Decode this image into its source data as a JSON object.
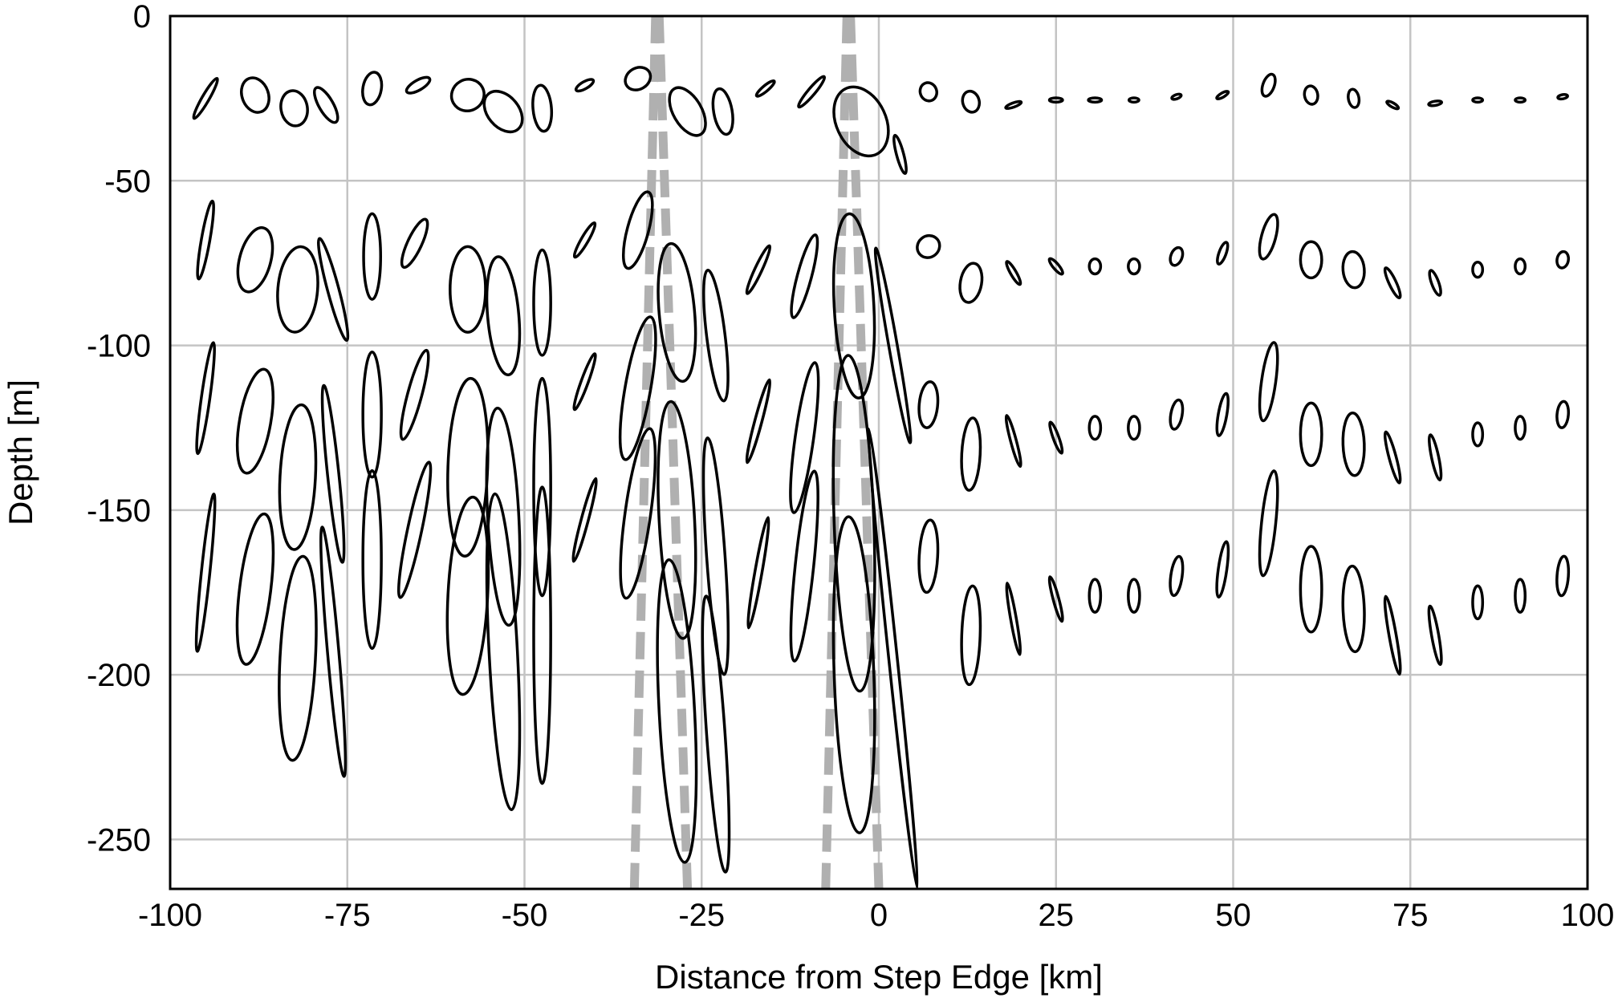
{
  "chart_data": {
    "type": "scatter",
    "mark": "ellipse",
    "title": "",
    "xlabel": "Distance from Step Edge [km]",
    "ylabel": "Depth [m]",
    "xlim": [
      -100,
      100
    ],
    "ylim": [
      -265,
      0
    ],
    "xticks": [
      -100,
      -75,
      -50,
      -25,
      0,
      25,
      50,
      75,
      100
    ],
    "yticks": [
      0,
      -50,
      -100,
      -150,
      -200,
      -250
    ],
    "xtick_labels": [
      "-100",
      "-75",
      "-50",
      "-25",
      "0",
      "25",
      "50",
      "75",
      "100"
    ],
    "ytick_labels": [
      "0",
      "-50",
      "-100",
      "-150",
      "-200",
      "-250"
    ],
    "grid": true,
    "reference_lines": {
      "style": "dashed",
      "color": "#b0b0b0",
      "lines": [
        {
          "x_top": -31.5,
          "x_bottom": -34.5
        },
        {
          "x_top": -31.0,
          "x_bottom": -27.0
        },
        {
          "x_top": -4.5,
          "x_bottom": -7.5
        },
        {
          "x_top": -4.0,
          "x_bottom": 0.0
        }
      ]
    },
    "depth_levels": [
      -25,
      -75,
      -125,
      -175
    ],
    "series": [
      {
        "ellipses": [
          {
            "x": -95,
            "y": -25,
            "ry": 7,
            "rx": 0.5,
            "tilt": 30
          },
          {
            "x": -88,
            "y": -24,
            "ry": 4,
            "rx": 2.5,
            "tilt": 70
          },
          {
            "x": -82.5,
            "y": -28,
            "ry": 4,
            "rx": 2.5,
            "tilt": 80
          },
          {
            "x": -78,
            "y": -27,
            "ry": 6,
            "rx": 1,
            "tilt": -30
          },
          {
            "x": -71.5,
            "y": -22,
            "ry": 5,
            "rx": 1.3,
            "tilt": 10
          },
          {
            "x": -65,
            "y": -21,
            "ry": 4,
            "rx": 0.7,
            "tilt": 60
          },
          {
            "x": -58,
            "y": -24,
            "ry": 5,
            "rx": 2.2,
            "tilt": 60
          },
          {
            "x": -53,
            "y": -29,
            "ry": 7,
            "rx": 2.2,
            "tilt": -40
          },
          {
            "x": -47.5,
            "y": -28,
            "ry": 7,
            "rx": 1.3,
            "tilt": -5
          },
          {
            "x": -41.5,
            "y": -21,
            "ry": 3,
            "rx": 0.5,
            "tilt": 60
          },
          {
            "x": -34,
            "y": -19,
            "ry": 4,
            "rx": 1.5,
            "tilt": 60
          },
          {
            "x": -27,
            "y": -29,
            "ry": 8,
            "rx": 2,
            "tilt": -30
          },
          {
            "x": -22,
            "y": -29,
            "ry": 7,
            "rx": 1.3,
            "tilt": -10
          },
          {
            "x": -16,
            "y": -22,
            "ry": 3.5,
            "rx": 0.4,
            "tilt": 50
          },
          {
            "x": -9.5,
            "y": -23,
            "ry": 6,
            "rx": 0.5,
            "tilt": 40
          },
          {
            "x": -2.5,
            "y": -32,
            "ry": 11,
            "rx": 3.5,
            "tilt": -25
          },
          {
            "x": 3,
            "y": -42,
            "ry": 6,
            "rx": 0.5,
            "tilt": -15
          },
          {
            "x": 7,
            "y": -23,
            "ry": 2.5,
            "rx": 1.3,
            "tilt": 70
          },
          {
            "x": 13,
            "y": -26,
            "ry": 2.5,
            "rx": 1.5,
            "tilt": 75
          },
          {
            "x": 19,
            "y": -27,
            "ry": 2.5,
            "rx": 0.3,
            "tilt": 70
          },
          {
            "x": 25,
            "y": -25.5,
            "ry": 2,
            "rx": 0.3,
            "tilt": 90
          },
          {
            "x": 30.5,
            "y": -25.5,
            "ry": 2,
            "rx": 0.3,
            "tilt": 90
          },
          {
            "x": 36,
            "y": -25.5,
            "ry": 1.5,
            "rx": 0.3,
            "tilt": 90
          },
          {
            "x": 42,
            "y": -24.5,
            "ry": 1.5,
            "rx": 0.3,
            "tilt": 70
          },
          {
            "x": 48.5,
            "y": -24,
            "ry": 2,
            "rx": 0.3,
            "tilt": 60
          },
          {
            "x": 55,
            "y": -21,
            "ry": 3.5,
            "rx": 0.8,
            "tilt": 20
          },
          {
            "x": 61,
            "y": -24,
            "ry": 2,
            "rx": 1.3,
            "tilt": 80
          },
          {
            "x": 67,
            "y": -25,
            "ry": 1.6,
            "rx": 1.3,
            "tilt": 80
          },
          {
            "x": 72.5,
            "y": -27,
            "ry": 2,
            "rx": 0.3,
            "tilt": -60
          },
          {
            "x": 78.5,
            "y": -26.5,
            "ry": 2,
            "rx": 0.3,
            "tilt": 80
          },
          {
            "x": 84.5,
            "y": -25.5,
            "ry": 1.5,
            "rx": 0.3,
            "tilt": 90
          },
          {
            "x": 90.5,
            "y": -25.5,
            "ry": 1.5,
            "rx": 0.3,
            "tilt": 90
          },
          {
            "x": 96.5,
            "y": -24.5,
            "ry": 1.5,
            "rx": 0.3,
            "tilt": 80
          }
        ]
      },
      {
        "ellipses": [
          {
            "x": -95,
            "y": -68,
            "ry": 12,
            "rx": 0.6,
            "tilt": 10
          },
          {
            "x": -88,
            "y": -74,
            "ry": 10,
            "rx": 2.2,
            "tilt": 15
          },
          {
            "x": -82,
            "y": -83,
            "ry": 13,
            "rx": 2.8,
            "tilt": 5
          },
          {
            "x": -77,
            "y": -83,
            "ry": 16,
            "rx": 0.8,
            "tilt": -15
          },
          {
            "x": -71.5,
            "y": -73,
            "ry": 13,
            "rx": 1.2,
            "tilt": 0
          },
          {
            "x": -65.5,
            "y": -69,
            "ry": 8,
            "rx": 1,
            "tilt": 25
          },
          {
            "x": -58,
            "y": -83,
            "ry": 13,
            "rx": 2.5,
            "tilt": 0
          },
          {
            "x": -53,
            "y": -91,
            "ry": 18,
            "rx": 2.2,
            "tilt": -5
          },
          {
            "x": -47.5,
            "y": -87,
            "ry": 16,
            "rx": 1.2,
            "tilt": 0
          },
          {
            "x": -41.5,
            "y": -68,
            "ry": 6,
            "rx": 0.5,
            "tilt": 30
          },
          {
            "x": -34,
            "y": -65,
            "ry": 12,
            "rx": 1.5,
            "tilt": 15
          },
          {
            "x": -28.5,
            "y": -90,
            "ry": 21,
            "rx": 2.5,
            "tilt": -5
          },
          {
            "x": -23,
            "y": -97,
            "ry": 20,
            "rx": 1.3,
            "tilt": -7
          },
          {
            "x": -17,
            "y": -77,
            "ry": 8,
            "rx": 0.5,
            "tilt": 25
          },
          {
            "x": -10.5,
            "y": -79,
            "ry": 13,
            "rx": 1,
            "tilt": 15
          },
          {
            "x": -3.5,
            "y": -88,
            "ry": 28,
            "rx": 2.8,
            "tilt": -3
          },
          {
            "x": 2,
            "y": -100,
            "ry": 30,
            "rx": 0.6,
            "tilt": -10
          },
          {
            "x": 7,
            "y": -70,
            "ry": 3.5,
            "rx": 1.5,
            "tilt": 50
          },
          {
            "x": 13,
            "y": -81,
            "ry": 6,
            "rx": 1.5,
            "tilt": 10
          },
          {
            "x": 19,
            "y": -78,
            "ry": 4,
            "rx": 0.4,
            "tilt": -30
          },
          {
            "x": 25,
            "y": -76,
            "ry": 3,
            "rx": 0.4,
            "tilt": -40
          },
          {
            "x": 30.5,
            "y": -76,
            "ry": 2.3,
            "rx": 0.8,
            "tilt": 0
          },
          {
            "x": 36,
            "y": -76,
            "ry": 2.3,
            "rx": 0.8,
            "tilt": 0
          },
          {
            "x": 42,
            "y": -73,
            "ry": 2.8,
            "rx": 0.8,
            "tilt": 20
          },
          {
            "x": 48.5,
            "y": -72,
            "ry": 3.5,
            "rx": 0.5,
            "tilt": 20
          },
          {
            "x": 55,
            "y": -67,
            "ry": 7,
            "rx": 1,
            "tilt": 15
          },
          {
            "x": 61,
            "y": -74,
            "ry": 5.5,
            "rx": 1.5,
            "tilt": 0
          },
          {
            "x": 67,
            "y": -77,
            "ry": 5.5,
            "rx": 1.5,
            "tilt": -5
          },
          {
            "x": 72.5,
            "y": -81,
            "ry": 5,
            "rx": 0.5,
            "tilt": -25
          },
          {
            "x": 78.5,
            "y": -81,
            "ry": 4,
            "rx": 0.5,
            "tilt": -20
          },
          {
            "x": 84.5,
            "y": -77,
            "ry": 2.3,
            "rx": 0.7,
            "tilt": 0
          },
          {
            "x": 90.5,
            "y": -76,
            "ry": 2.3,
            "rx": 0.7,
            "tilt": 0
          },
          {
            "x": 96.5,
            "y": -74,
            "ry": 2.5,
            "rx": 0.8,
            "tilt": 10
          }
        ]
      },
      {
        "ellipses": [
          {
            "x": -95,
            "y": -116,
            "ry": 17,
            "rx": 0.6,
            "tilt": 8
          },
          {
            "x": -88,
            "y": -123,
            "ry": 16,
            "rx": 2.2,
            "tilt": 10
          },
          {
            "x": -82,
            "y": -140,
            "ry": 22,
            "rx": 2.5,
            "tilt": 3
          },
          {
            "x": -77,
            "y": -139,
            "ry": 27,
            "rx": 0.8,
            "tilt": -6
          },
          {
            "x": -71.5,
            "y": -121,
            "ry": 19,
            "rx": 1.3,
            "tilt": 0
          },
          {
            "x": -65.5,
            "y": -115,
            "ry": 14,
            "rx": 1,
            "tilt": 15
          },
          {
            "x": -58,
            "y": -137,
            "ry": 27,
            "rx": 2.8,
            "tilt": 2
          },
          {
            "x": -53,
            "y": -152,
            "ry": 33,
            "rx": 2.2,
            "tilt": -3
          },
          {
            "x": -47.5,
            "y": -143,
            "ry": 33,
            "rx": 1.2,
            "tilt": 0
          },
          {
            "x": -41.5,
            "y": -111,
            "ry": 9,
            "rx": 0.5,
            "tilt": 20
          },
          {
            "x": -34,
            "y": -113,
            "ry": 22,
            "rx": 1.8,
            "tilt": 10
          },
          {
            "x": -28.5,
            "y": -153,
            "ry": 36,
            "rx": 2.5,
            "tilt": -3
          },
          {
            "x": -23,
            "y": -164,
            "ry": 36,
            "rx": 1.3,
            "tilt": -4
          },
          {
            "x": -17,
            "y": -123,
            "ry": 13,
            "rx": 0.5,
            "tilt": 15
          },
          {
            "x": -10.5,
            "y": -128,
            "ry": 23,
            "rx": 1.3,
            "tilt": 8
          },
          {
            "x": -3.5,
            "y": -154,
            "ry": 51,
            "rx": 2.8,
            "tilt": -2
          },
          {
            "x": 2,
            "y": -195,
            "ry": 70,
            "rx": 0.6,
            "tilt": -6
          },
          {
            "x": 7,
            "y": -118,
            "ry": 7,
            "rx": 1.3,
            "tilt": 5
          },
          {
            "x": 13,
            "y": -133,
            "ry": 11,
            "rx": 1.3,
            "tilt": 3
          },
          {
            "x": 19,
            "y": -129,
            "ry": 8,
            "rx": 0.4,
            "tilt": -15
          },
          {
            "x": 25,
            "y": -128,
            "ry": 5,
            "rx": 0.4,
            "tilt": -20
          },
          {
            "x": 30.5,
            "y": -125,
            "ry": 3.5,
            "rx": 0.8,
            "tilt": 0
          },
          {
            "x": 36,
            "y": -125,
            "ry": 3.5,
            "rx": 0.8,
            "tilt": 0
          },
          {
            "x": 42,
            "y": -121,
            "ry": 4.5,
            "rx": 0.8,
            "tilt": 10
          },
          {
            "x": 48.5,
            "y": -121,
            "ry": 6.5,
            "rx": 0.6,
            "tilt": 10
          },
          {
            "x": 55,
            "y": -111,
            "ry": 12,
            "rx": 1,
            "tilt": 8
          },
          {
            "x": 61,
            "y": -127,
            "ry": 9.5,
            "rx": 1.5,
            "tilt": 0
          },
          {
            "x": 67,
            "y": -130,
            "ry": 9.5,
            "rx": 1.5,
            "tilt": -2
          },
          {
            "x": 72.5,
            "y": -134,
            "ry": 8,
            "rx": 0.5,
            "tilt": -15
          },
          {
            "x": 78.5,
            "y": -134,
            "ry": 7,
            "rx": 0.5,
            "tilt": -12
          },
          {
            "x": 84.5,
            "y": -127,
            "ry": 3.5,
            "rx": 0.7,
            "tilt": 0
          },
          {
            "x": 90.5,
            "y": -125,
            "ry": 3.5,
            "rx": 0.7,
            "tilt": 0
          },
          {
            "x": 96.5,
            "y": -121,
            "ry": 4,
            "rx": 0.8,
            "tilt": 5
          }
        ]
      },
      {
        "ellipses": [
          {
            "x": -95,
            "y": -169,
            "ry": 24,
            "rx": 0.6,
            "tilt": 6
          },
          {
            "x": -88,
            "y": -174,
            "ry": 23,
            "rx": 2.2,
            "tilt": 7
          },
          {
            "x": -82,
            "y": -195,
            "ry": 31,
            "rx": 2.5,
            "tilt": 3
          },
          {
            "x": -77,
            "y": -193,
            "ry": 38,
            "rx": 0.8,
            "tilt": -5
          },
          {
            "x": -71.5,
            "y": -165,
            "ry": 27,
            "rx": 1.3,
            "tilt": 0
          },
          {
            "x": -65.5,
            "y": -156,
            "ry": 21,
            "rx": 1,
            "tilt": 12
          },
          {
            "x": -58,
            "y": -176,
            "ry": 30,
            "rx": 2.8,
            "tilt": 3
          },
          {
            "x": -53,
            "y": -193,
            "ry": 48,
            "rx": 2,
            "tilt": -3
          },
          {
            "x": -47.5,
            "y": -188,
            "ry": 45,
            "rx": 1.2,
            "tilt": 0
          },
          {
            "x": -41.5,
            "y": -153,
            "ry": 13,
            "rx": 0.5,
            "tilt": 15
          },
          {
            "x": -34,
            "y": -151,
            "ry": 26,
            "rx": 1.8,
            "tilt": 8
          },
          {
            "x": -28.5,
            "y": -211,
            "ry": 46,
            "rx": 2.5,
            "tilt": -3
          },
          {
            "x": -23,
            "y": -218,
            "ry": 42,
            "rx": 1.3,
            "tilt": -4
          },
          {
            "x": -17,
            "y": -169,
            "ry": 17,
            "rx": 0.5,
            "tilt": 10
          },
          {
            "x": -10.5,
            "y": -167,
            "ry": 29,
            "rx": 1.3,
            "tilt": 6
          },
          {
            "x": -3.5,
            "y": -200,
            "ry": 48,
            "rx": 2.8,
            "tilt": -2
          },
          {
            "x": 7,
            "y": -164,
            "ry": 11,
            "rx": 1.3,
            "tilt": 3
          },
          {
            "x": 13,
            "y": -188,
            "ry": 15,
            "rx": 1.3,
            "tilt": 2
          },
          {
            "x": 19,
            "y": -183,
            "ry": 11,
            "rx": 0.4,
            "tilt": -10
          },
          {
            "x": 25,
            "y": -177,
            "ry": 7,
            "rx": 0.4,
            "tilt": -15
          },
          {
            "x": 30.5,
            "y": -176,
            "ry": 5,
            "rx": 0.8,
            "tilt": 0
          },
          {
            "x": 36,
            "y": -176,
            "ry": 5,
            "rx": 0.8,
            "tilt": 0
          },
          {
            "x": 42,
            "y": -170,
            "ry": 6,
            "rx": 0.8,
            "tilt": 8
          },
          {
            "x": 48.5,
            "y": -168,
            "ry": 8.5,
            "rx": 0.6,
            "tilt": 8
          },
          {
            "x": 55,
            "y": -154,
            "ry": 16,
            "rx": 1,
            "tilt": 6
          },
          {
            "x": 61,
            "y": -174,
            "ry": 13,
            "rx": 1.5,
            "tilt": 0
          },
          {
            "x": 67,
            "y": -180,
            "ry": 13,
            "rx": 1.5,
            "tilt": -2
          },
          {
            "x": 72.5,
            "y": -188,
            "ry": 12,
            "rx": 0.5,
            "tilt": -10
          },
          {
            "x": 78.5,
            "y": -188,
            "ry": 9,
            "rx": 0.5,
            "tilt": -10
          },
          {
            "x": 84.5,
            "y": -178,
            "ry": 5,
            "rx": 0.7,
            "tilt": 0
          },
          {
            "x": 90.5,
            "y": -176,
            "ry": 5,
            "rx": 0.7,
            "tilt": 0
          },
          {
            "x": 96.5,
            "y": -170,
            "ry": 6,
            "rx": 0.8,
            "tilt": 4
          }
        ]
      }
    ]
  }
}
